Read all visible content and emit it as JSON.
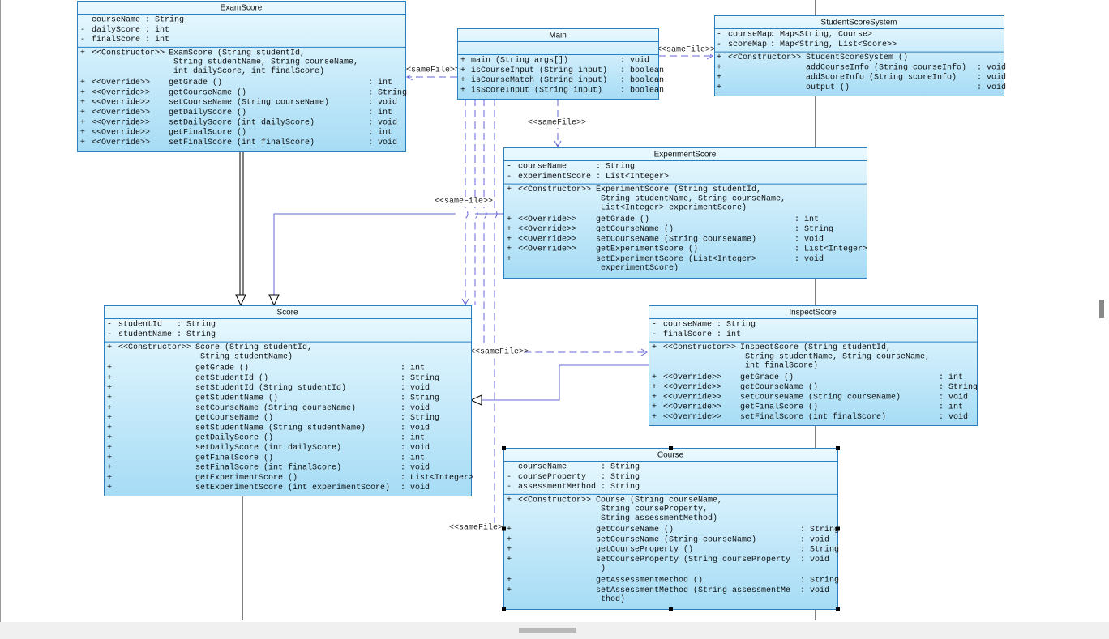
{
  "classes": [
    {
      "name": "ExamScore",
      "attributes": [
        {
          "vis": "-",
          "name": "courseName",
          "type": ": String"
        },
        {
          "vis": "-",
          "name": "dailyScore",
          "type": ": int"
        },
        {
          "vis": "-",
          "name": "finalScore",
          "type": ": int"
        }
      ],
      "methods": [
        {
          "vis": "+",
          "stereo": "<<Constructor>>",
          "sig": [
            "ExamScore (String studentId,",
            "String studentName, String courseName,",
            "int dailyScore, int finalScore)"
          ]
        },
        {
          "vis": "+",
          "stereo": "<<Override>>",
          "sig": [
            "getGrade ()"
          ],
          "ret": ": int"
        },
        {
          "vis": "+",
          "stereo": "<<Override>>",
          "sig": [
            "getCourseName ()"
          ],
          "ret": ": String"
        },
        {
          "vis": "+",
          "stereo": "<<Override>>",
          "sig": [
            "setCourseName (String courseName)"
          ],
          "ret": ": void"
        },
        {
          "vis": "+",
          "stereo": "<<Override>>",
          "sig": [
            "getDailyScore ()"
          ],
          "ret": ": int"
        },
        {
          "vis": "+",
          "stereo": "<<Override>>",
          "sig": [
            "setDailyScore (int dailyScore)"
          ],
          "ret": ": void"
        },
        {
          "vis": "+",
          "stereo": "<<Override>>",
          "sig": [
            "getFinalScore ()"
          ],
          "ret": ": int"
        },
        {
          "vis": "+",
          "stereo": "<<Override>>",
          "sig": [
            "setFinalScore (int finalScore)"
          ],
          "ret": ": void"
        }
      ]
    },
    {
      "name": "Main",
      "attributes": [],
      "methods": [
        {
          "vis": "+",
          "sig": [
            "main (String args[])"
          ],
          "ret": ": void"
        },
        {
          "vis": "+",
          "sig": [
            "isCourseInput (String input)"
          ],
          "ret": ": boolean"
        },
        {
          "vis": "+",
          "sig": [
            "isCourseMatch (String input)"
          ],
          "ret": ": boolean"
        },
        {
          "vis": "+",
          "sig": [
            "isScoreInput (String input)"
          ],
          "ret": ": boolean"
        }
      ]
    },
    {
      "name": "StudentScoreSystem",
      "attributes": [
        {
          "vis": "-",
          "name": "courseMap",
          "type": ": Map<String, Course>"
        },
        {
          "vis": "-",
          "name": "scoreMap",
          "type": ": Map<String, List<Score>>"
        }
      ],
      "methods": [
        {
          "vis": "+",
          "stereo": "<<Constructor>>",
          "sig": [
            "StudentScoreSystem ()"
          ]
        },
        {
          "vis": "+",
          "sig": [
            "addCourseInfo (String courseInfo)"
          ],
          "ret": ": void"
        },
        {
          "vis": "+",
          "sig": [
            "addScoreInfo (String scoreInfo)"
          ],
          "ret": ": void"
        },
        {
          "vis": "+",
          "sig": [
            "output ()"
          ],
          "ret": ": void"
        }
      ]
    },
    {
      "name": "ExperimentScore",
      "attributes": [
        {
          "vis": "-",
          "name": "courseName",
          "type": ": String"
        },
        {
          "vis": "-",
          "name": "experimentScore",
          "type": ": List<Integer>"
        }
      ],
      "methods": [
        {
          "vis": "+",
          "stereo": "<<Constructor>>",
          "sig": [
            "ExperimentScore (String studentId,",
            "String studentName, String courseName,",
            "List<Integer> experimentScore)"
          ]
        },
        {
          "vis": "+",
          "stereo": "<<Override>>",
          "sig": [
            "getGrade ()"
          ],
          "ret": ": int"
        },
        {
          "vis": "+",
          "stereo": "<<Override>>",
          "sig": [
            "getCourseName ()"
          ],
          "ret": ": String"
        },
        {
          "vis": "+",
          "stereo": "<<Override>>",
          "sig": [
            "setCourseName (String courseName)"
          ],
          "ret": ": void"
        },
        {
          "vis": "+",
          "stereo": "<<Override>>",
          "sig": [
            "getExperimentScore ()"
          ],
          "ret": ": List<Integer>"
        },
        {
          "vis": "+",
          "sig": [
            "setExperimentScore (List<Integer>",
            "experimentScore)"
          ],
          "ret": ": void"
        }
      ]
    },
    {
      "name": "Score",
      "attributes": [
        {
          "vis": "-",
          "name": "studentId",
          "type": ": String"
        },
        {
          "vis": "-",
          "name": "studentName",
          "type": ": String"
        }
      ],
      "methods": [
        {
          "vis": "+",
          "stereo": "<<Constructor>>",
          "sig": [
            "Score (String studentId,",
            "String studentName)"
          ]
        },
        {
          "vis": "+",
          "sig": [
            "getGrade ()"
          ],
          "ret": ": int"
        },
        {
          "vis": "+",
          "sig": [
            "getStudentId ()"
          ],
          "ret": ": String"
        },
        {
          "vis": "+",
          "sig": [
            "setStudentId (String studentId)"
          ],
          "ret": ": void"
        },
        {
          "vis": "+",
          "sig": [
            "getStudentName ()"
          ],
          "ret": ": String"
        },
        {
          "vis": "+",
          "sig": [
            "setCourseName (String courseName)"
          ],
          "ret": ": void"
        },
        {
          "vis": "+",
          "sig": [
            "getCourseName ()"
          ],
          "ret": ": String"
        },
        {
          "vis": "+",
          "sig": [
            "setStudentName (String studentName)"
          ],
          "ret": ": void"
        },
        {
          "vis": "+",
          "sig": [
            "getDailyScore ()"
          ],
          "ret": ": int"
        },
        {
          "vis": "+",
          "sig": [
            "setDailyScore (int dailyScore)"
          ],
          "ret": ": void"
        },
        {
          "vis": "+",
          "sig": [
            "getFinalScore ()"
          ],
          "ret": ": int"
        },
        {
          "vis": "+",
          "sig": [
            "setFinalScore (int finalScore)"
          ],
          "ret": ": void"
        },
        {
          "vis": "+",
          "sig": [
            "getExperimentScore ()"
          ],
          "ret": ": List<Integer>"
        },
        {
          "vis": "+",
          "sig": [
            "setExperimentScore (int experimentScore)"
          ],
          "ret": ": void"
        }
      ]
    },
    {
      "name": "InspectScore",
      "attributes": [
        {
          "vis": "-",
          "name": "courseName",
          "type": ": String"
        },
        {
          "vis": "-",
          "name": "finalScore",
          "type": ": int"
        }
      ],
      "methods": [
        {
          "vis": "+",
          "stereo": "<<Constructor>>",
          "sig": [
            "InspectScore (String studentId,",
            "String studentName, String courseName,",
            "int finalScore)"
          ]
        },
        {
          "vis": "+",
          "stereo": "<<Override>>",
          "sig": [
            "getGrade ()"
          ],
          "ret": ": int"
        },
        {
          "vis": "+",
          "stereo": "<<Override>>",
          "sig": [
            "getCourseName ()"
          ],
          "ret": ": String"
        },
        {
          "vis": "+",
          "stereo": "<<Override>>",
          "sig": [
            "setCourseName (String courseName)"
          ],
          "ret": ": void"
        },
        {
          "vis": "+",
          "stereo": "<<Override>>",
          "sig": [
            "getFinalScore ()"
          ],
          "ret": ": int"
        },
        {
          "vis": "+",
          "stereo": "<<Override>>",
          "sig": [
            "setFinalScore (int finalScore)"
          ],
          "ret": ": void"
        }
      ]
    },
    {
      "name": "Course",
      "attributes": [
        {
          "vis": "-",
          "name": "courseName",
          "type": ": String"
        },
        {
          "vis": "-",
          "name": "courseProperty",
          "type": ": String"
        },
        {
          "vis": "-",
          "name": "assessmentMethod",
          "type": ": String"
        }
      ],
      "methods": [
        {
          "vis": "+",
          "stereo": "<<Constructor>>",
          "sig": [
            "Course (String courseName,",
            "String courseProperty,",
            "String assessmentMethod)"
          ]
        },
        {
          "vis": "+",
          "sig": [
            "getCourseName ()"
          ],
          "ret": ": String"
        },
        {
          "vis": "+",
          "sig": [
            "setCourseName (String courseName)"
          ],
          "ret": ": void"
        },
        {
          "vis": "+",
          "sig": [
            "getCourseProperty ()"
          ],
          "ret": ": String"
        },
        {
          "vis": "+",
          "sig": [
            "setCourseProperty (String courseProperty",
            ")"
          ],
          "ret": ": void"
        },
        {
          "vis": "+",
          "sig": [
            "getAssessmentMethod ()"
          ],
          "ret": ": String"
        },
        {
          "vis": "+",
          "sig": [
            "setAssessmentMethod (String assessmentMe",
            "thod)"
          ],
          "ret": ": void"
        }
      ]
    }
  ],
  "edges": [
    {
      "label": "<<sameFile>>"
    },
    {
      "label": "<<sameFile>>"
    },
    {
      "label": "<<sameFile>>"
    },
    {
      "label": "<<sameFile>>"
    },
    {
      "label": "<<sameFile>>"
    },
    {
      "label": "<<sameFile>>"
    }
  ]
}
